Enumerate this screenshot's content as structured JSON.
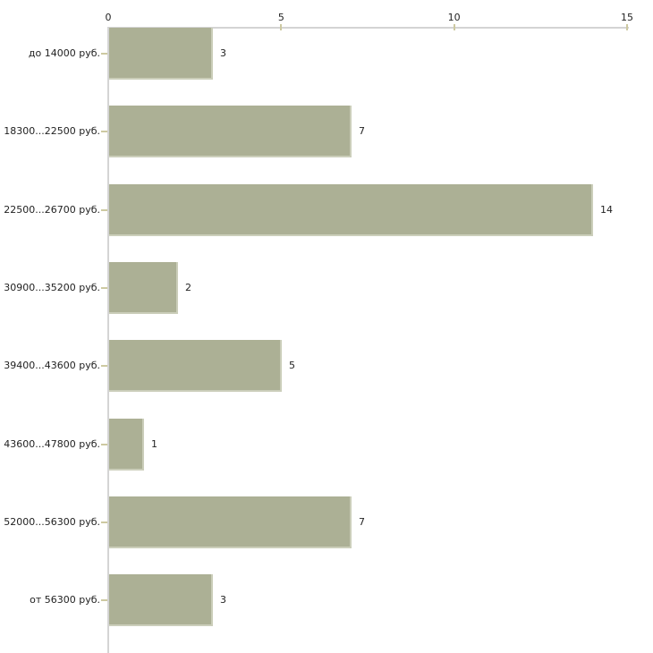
{
  "chart_data": {
    "type": "bar",
    "orientation": "horizontal",
    "title": "",
    "categories": [
      "до 14000 руб.",
      "18300...22500 руб.",
      "22500...26700 руб.",
      "30900...35200 руб.",
      "39400...43600 руб.",
      "43600...47800 руб.",
      "52000...56300 руб.",
      "от 56300 руб."
    ],
    "values": [
      3,
      7,
      14,
      2,
      5,
      1,
      7,
      3
    ],
    "value_labels": [
      "3",
      "7",
      "14",
      "2",
      "5",
      "1",
      "7",
      "3"
    ],
    "x_axis": {
      "position": "top",
      "tick_labels": [
        "0",
        "5",
        "10",
        "15"
      ],
      "tick_values": [
        0,
        5,
        10,
        15
      ],
      "xlim": [
        0,
        15
      ]
    },
    "y_axis": {
      "position": "left"
    },
    "grid": false,
    "legend": null,
    "value_labels_shown": true,
    "colors": {
      "bar_fill": "#acb095",
      "bar_edge_highlight": "#cbceba",
      "axis_line": "#d4d4d4",
      "tick_mark": "#cdc9a1",
      "text": "#222222",
      "background": "#ffffff"
    }
  }
}
